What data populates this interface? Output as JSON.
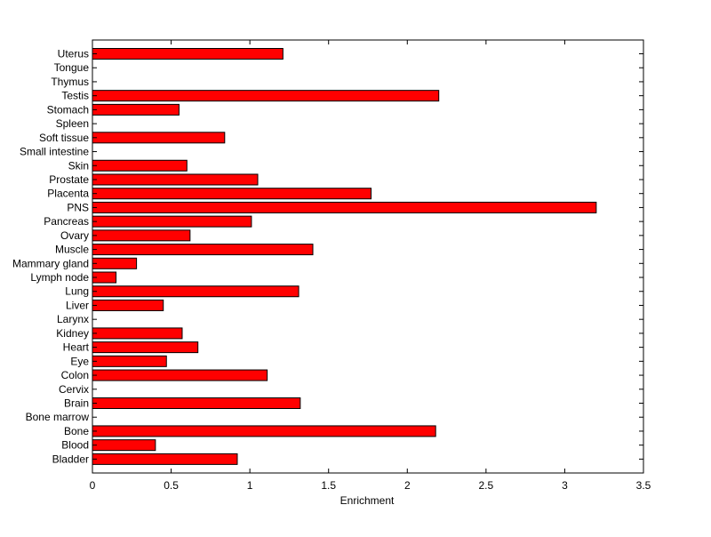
{
  "chart_data": {
    "type": "bar",
    "orientation": "horizontal",
    "title": "",
    "xlabel": "Enrichment",
    "ylabel": "",
    "xlim": [
      0,
      3.5
    ],
    "x_ticks": [
      "0",
      "0.5",
      "1",
      "1.5",
      "2",
      "2.5",
      "3",
      "3.5"
    ],
    "grid": false,
    "bar_color": "#ff0000",
    "bar_edge_color": "#000000",
    "categories": [
      "Uterus",
      "Tongue",
      "Thymus",
      "Testis",
      "Stomach",
      "Spleen",
      "Soft tissue",
      "Small intestine",
      "Skin",
      "Prostate",
      "Placenta",
      "PNS",
      "Pancreas",
      "Ovary",
      "Muscle",
      "Mammary gland",
      "Lymph node",
      "Lung",
      "Liver",
      "Larynx",
      "Kidney",
      "Heart",
      "Eye",
      "Colon",
      "Cervix",
      "Brain",
      "Bone marrow",
      "Bone",
      "Blood",
      "Bladder"
    ],
    "values": [
      1.21,
      0,
      0,
      2.2,
      0.55,
      0,
      0.84,
      0,
      0.6,
      1.05,
      1.77,
      3.2,
      1.01,
      0.62,
      1.4,
      0.28,
      0.15,
      1.31,
      0.45,
      0,
      0.57,
      0.67,
      0.47,
      1.11,
      0,
      1.32,
      0,
      2.18,
      0.4,
      0.92
    ]
  }
}
